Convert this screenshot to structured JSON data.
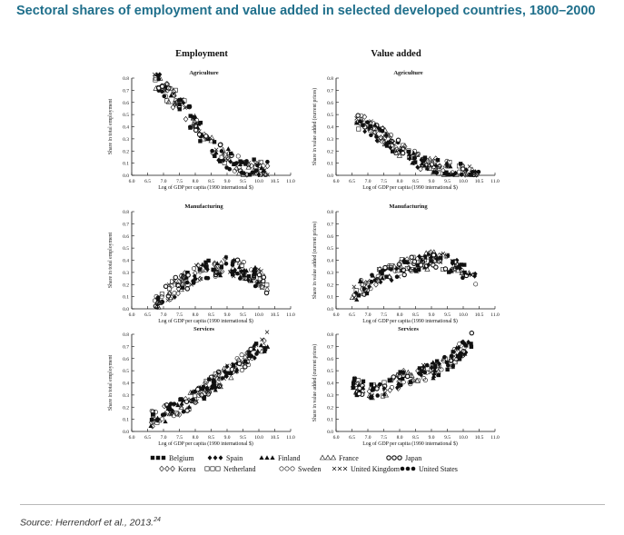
{
  "page": {
    "title": "Sectoral shares of employment and value added in selected developed countries, 1800–2000",
    "source": "Source: Herrendorf et al., 2013.",
    "source_note": "24"
  },
  "columns": [
    "Employment",
    "Value added"
  ],
  "legend": [
    {
      "label": "Belgium",
      "marker": "square-filled"
    },
    {
      "label": "Spain",
      "marker": "diamond-filled"
    },
    {
      "label": "Finland",
      "marker": "triangle-filled"
    },
    {
      "label": "France",
      "marker": "triangle-open"
    },
    {
      "label": "Japan",
      "marker": "circle-dot"
    },
    {
      "label": "Korea",
      "marker": "diamond-open"
    },
    {
      "label": "Netherland",
      "marker": "square-open"
    },
    {
      "label": "Sweden",
      "marker": "circle-open"
    },
    {
      "label": "United Kingdom",
      "marker": "cross"
    },
    {
      "label": "United States",
      "marker": "circle-filled"
    }
  ],
  "chart_data": [
    {
      "type": "scatter",
      "title": "Agriculture",
      "ylabel": "Share in total employment",
      "xlabel": "Log of GDP per capita (1990 international $)",
      "xlim": [
        6.0,
        11.0
      ],
      "ylim": [
        0.0,
        0.8
      ],
      "xticks": [
        "6.0",
        "6.5",
        "7.0",
        "7.5",
        "8.0",
        "8.5",
        "9.0",
        "9.5",
        "10.0",
        "10.5",
        "11.0"
      ],
      "yticks": [
        "0.0",
        "0.1",
        "0.2",
        "0.3",
        "0.4",
        "0.5",
        "0.6",
        "0.7",
        "0.8"
      ],
      "trend": [
        [
          6.7,
          0.82
        ],
        [
          7.0,
          0.72
        ],
        [
          7.5,
          0.58
        ],
        [
          8.0,
          0.42
        ],
        [
          8.5,
          0.26
        ],
        [
          9.0,
          0.15
        ],
        [
          9.5,
          0.08
        ],
        [
          10.0,
          0.04
        ],
        [
          10.3,
          0.02
        ]
      ],
      "spread": 0.09,
      "seed": 11
    },
    {
      "type": "scatter",
      "title": "Agriculture",
      "ylabel": "Share in value added (current prices)",
      "xlabel": "Log of GDP per capita (1990 international $)",
      "xlim": [
        6.0,
        11.0
      ],
      "ylim": [
        0.0,
        0.8
      ],
      "xticks": [
        "6.0",
        "6.5",
        "7.0",
        "7.5",
        "8.0",
        "8.5",
        "9.0",
        "9.5",
        "10.0",
        "10.5",
        "11.0"
      ],
      "yticks": [
        "0.0",
        "0.1",
        "0.2",
        "0.3",
        "0.4",
        "0.5",
        "0.6",
        "0.7",
        "0.8"
      ],
      "trend": [
        [
          6.6,
          0.45
        ],
        [
          7.0,
          0.4
        ],
        [
          7.5,
          0.32
        ],
        [
          8.0,
          0.22
        ],
        [
          8.5,
          0.13
        ],
        [
          9.0,
          0.08
        ],
        [
          9.5,
          0.05
        ],
        [
          10.0,
          0.02
        ],
        [
          10.5,
          0.01
        ]
      ],
      "spread": 0.07,
      "seed": 23
    },
    {
      "type": "scatter",
      "title": "Manufacturing",
      "ylabel": "Share in total employment",
      "xlabel": "Log of GDP per capita (1990 international $)",
      "xlim": [
        6.0,
        11.0
      ],
      "ylim": [
        0.0,
        0.8
      ],
      "xticks": [
        "6.0",
        "6.5",
        "7.0",
        "7.5",
        "8.0",
        "8.5",
        "9.0",
        "9.5",
        "10.0",
        "10.5",
        "11.0"
      ],
      "yticks": [
        "0.0",
        "0.1",
        "0.2",
        "0.3",
        "0.4",
        "0.5",
        "0.6",
        "0.7",
        "0.8"
      ],
      "trend": [
        [
          6.7,
          0.06
        ],
        [
          7.0,
          0.12
        ],
        [
          7.5,
          0.2
        ],
        [
          8.0,
          0.28
        ],
        [
          8.5,
          0.33
        ],
        [
          9.0,
          0.35
        ],
        [
          9.5,
          0.32
        ],
        [
          10.0,
          0.25
        ],
        [
          10.3,
          0.2
        ]
      ],
      "spread": 0.08,
      "seed": 37
    },
    {
      "type": "scatter",
      "title": "Manufacturing",
      "ylabel": "Share in value added (current prices)",
      "xlabel": "Log of GDP per capita (1990 international $)",
      "xlim": [
        6.0,
        11.0
      ],
      "ylim": [
        0.0,
        0.8
      ],
      "xticks": [
        "6.0",
        "6.5",
        "7.0",
        "7.5",
        "8.0",
        "8.5",
        "9.0",
        "9.5",
        "10.0",
        "10.5",
        "11.0"
      ],
      "yticks": [
        "0.0",
        "0.1",
        "0.2",
        "0.3",
        "0.4",
        "0.5",
        "0.6",
        "0.7",
        "0.8"
      ],
      "trend": [
        [
          6.5,
          0.12
        ],
        [
          7.0,
          0.2
        ],
        [
          7.5,
          0.28
        ],
        [
          8.0,
          0.33
        ],
        [
          8.5,
          0.37
        ],
        [
          9.0,
          0.4
        ],
        [
          9.5,
          0.38
        ],
        [
          10.0,
          0.3
        ],
        [
          10.4,
          0.22
        ]
      ],
      "spread": 0.07,
      "seed": 41
    },
    {
      "type": "scatter",
      "title": "Services",
      "ylabel": "Share in total employment",
      "xlabel": "Log of GDP per capita (1990 international $)",
      "xlim": [
        6.0,
        11.0
      ],
      "ylim": [
        0.0,
        0.8
      ],
      "xticks": [
        "6.0",
        "6.5",
        "7.0",
        "7.5",
        "8.0",
        "8.5",
        "9.0",
        "9.5",
        "10.0",
        "10.5",
        "11.0"
      ],
      "yticks": [
        "0.0",
        "0.1",
        "0.2",
        "0.3",
        "0.4",
        "0.5",
        "0.6",
        "0.7",
        "0.8"
      ],
      "trend": [
        [
          6.6,
          0.1
        ],
        [
          7.0,
          0.14
        ],
        [
          7.5,
          0.2
        ],
        [
          8.0,
          0.28
        ],
        [
          8.5,
          0.38
        ],
        [
          9.0,
          0.47
        ],
        [
          9.5,
          0.57
        ],
        [
          10.0,
          0.68
        ],
        [
          10.3,
          0.76
        ]
      ],
      "spread": 0.07,
      "seed": 53
    },
    {
      "type": "scatter",
      "title": "Services",
      "ylabel": "Share in value added (current prices)",
      "xlabel": "Log of GDP per capita (1990 international $)",
      "xlim": [
        6.0,
        11.0
      ],
      "ylim": [
        0.0,
        0.8
      ],
      "xticks": [
        "6.0",
        "6.5",
        "7.0",
        "7.5",
        "8.0",
        "8.5",
        "9.0",
        "9.5",
        "10.0",
        "10.5",
        "11.0"
      ],
      "yticks": [
        "0.0",
        "0.1",
        "0.2",
        "0.3",
        "0.4",
        "0.5",
        "0.6",
        "0.7",
        "0.8"
      ],
      "trend": [
        [
          6.5,
          0.38
        ],
        [
          7.0,
          0.33
        ],
        [
          7.5,
          0.36
        ],
        [
          8.0,
          0.42
        ],
        [
          8.5,
          0.46
        ],
        [
          9.0,
          0.5
        ],
        [
          9.5,
          0.56
        ],
        [
          10.0,
          0.68
        ],
        [
          10.3,
          0.76
        ]
      ],
      "spread": 0.07,
      "seed": 67
    }
  ]
}
